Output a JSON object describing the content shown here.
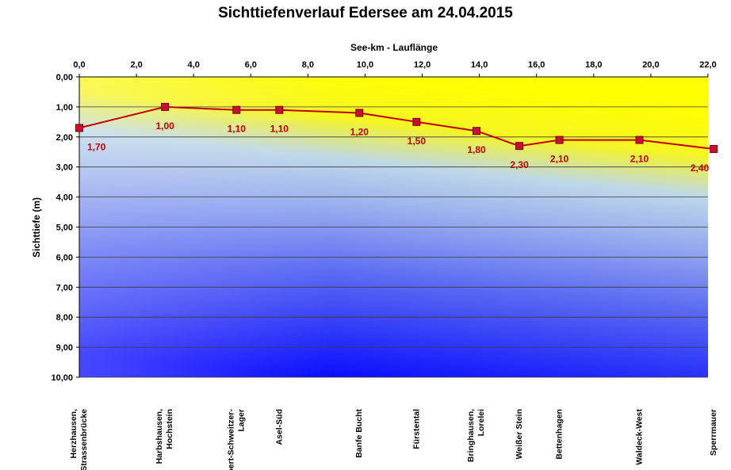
{
  "chart_data": {
    "type": "line",
    "title": "Sichttiefenverlauf Edersee am 24.04.2015",
    "xlabel": "See-km - Lauflänge",
    "ylabel": "Sichttiefe (m)",
    "xlim": [
      0,
      22
    ],
    "ylim": [
      0,
      10
    ],
    "y_inverted": true,
    "x_axis_position": "top",
    "x_ticks": [
      "0,0",
      "2,0",
      "4,0",
      "6,0",
      "8,0",
      "10,0",
      "12,0",
      "14,0",
      "16,0",
      "18,0",
      "20,0",
      "22,0"
    ],
    "y_ticks": [
      "0,00",
      "1,00",
      "2,00",
      "3,00",
      "4,00",
      "5,00",
      "6,00",
      "7,00",
      "8,00",
      "9,00",
      "10,00"
    ],
    "grid": true,
    "series": [
      {
        "x": [
          0.0,
          3.0,
          5.5,
          7.0,
          9.8,
          11.8,
          13.9,
          15.4,
          16.8,
          19.6,
          22.2
        ],
        "values": [
          1.7,
          1.0,
          1.1,
          1.1,
          1.2,
          1.5,
          1.8,
          2.3,
          2.1,
          2.1,
          2.4
        ],
        "data_labels": [
          "1,70",
          "1,00",
          "1,10",
          "1,10",
          "1,20",
          "1,50",
          "1,80",
          "2,30",
          "2,10",
          "2,10",
          "2,40"
        ],
        "color": "#c00000"
      }
    ],
    "sites": [
      [
        "Herzhausen,",
        "Strassenbrücke"
      ],
      [
        "Harbshausen,",
        "Hochstein"
      ],
      [
        "Albert-Schweitzer-",
        "Lager"
      ],
      [
        "Asel-Süd"
      ],
      [
        "Banfe Bucht"
      ],
      [
        "Fürstental"
      ],
      [
        "Bringhausen,",
        "Lorelei"
      ],
      [
        "Weißer Stein"
      ],
      [
        "Bettenhagen"
      ],
      [
        "Waldeck-West"
      ],
      [
        "Sperrmauer"
      ]
    ],
    "colors": {
      "line": "#c00000",
      "marker_fill": "#c8102e",
      "label": "#c00000",
      "top_fill": "#ffff00",
      "bottom_fill": "#0000ff"
    }
  }
}
